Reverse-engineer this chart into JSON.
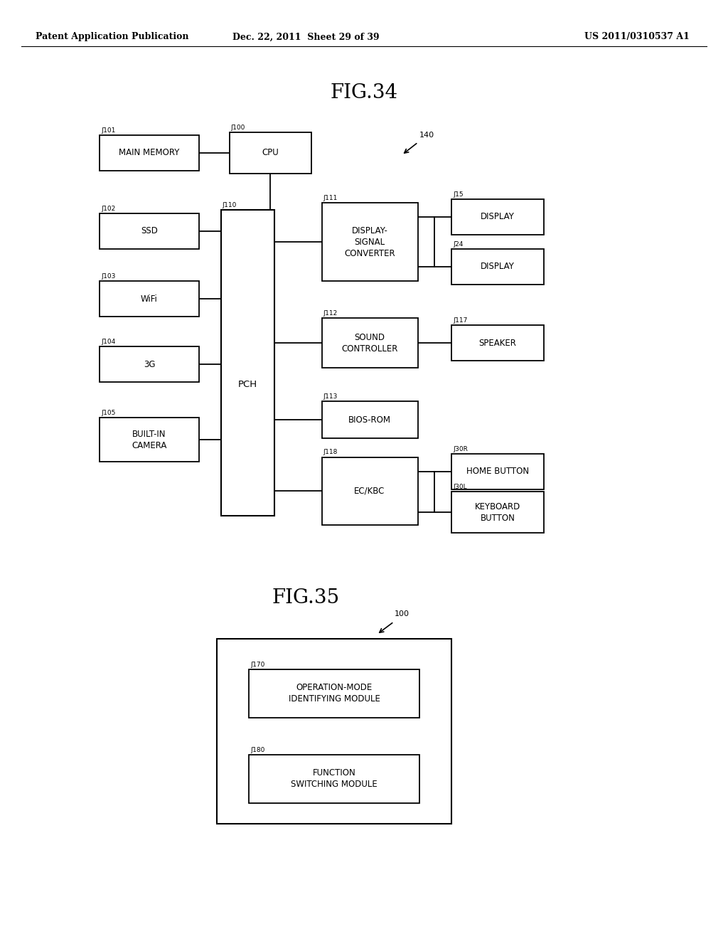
{
  "header_left": "Patent Application Publication",
  "header_mid": "Dec. 22, 2011  Sheet 29 of 39",
  "header_right": "US 2011/0310537 A1",
  "fig34_title": "FIG.34",
  "fig35_title": "FIG.35",
  "bg": "#ffffff"
}
